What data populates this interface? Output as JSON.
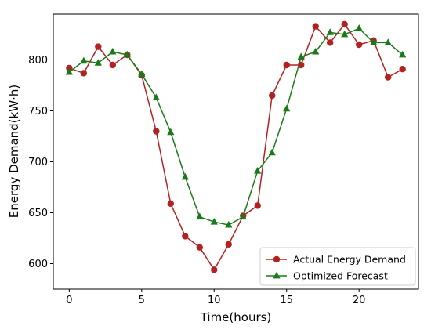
{
  "chart_data": {
    "type": "line",
    "title": "",
    "xlabel": "Time(hours)",
    "ylabel": "Energy Demand(kW·h)",
    "xlim": [
      -1.1,
      24.1
    ],
    "ylim": [
      575,
      845
    ],
    "xticks": [
      0,
      5,
      10,
      15,
      20
    ],
    "yticks": [
      600,
      650,
      700,
      750,
      800
    ],
    "grid": false,
    "legend_position": "lower-right",
    "x": [
      0,
      1,
      2,
      3,
      4,
      5,
      6,
      7,
      8,
      9,
      10,
      11,
      12,
      13,
      14,
      15,
      16,
      17,
      18,
      19,
      20,
      21,
      22,
      23
    ],
    "series": [
      {
        "name": "Actual Energy Demand",
        "color": "#b22222",
        "marker": "circle",
        "values": [
          792,
          787,
          813,
          795,
          805,
          785,
          730,
          659,
          627,
          616,
          594,
          619,
          647,
          657,
          765,
          795,
          795,
          833,
          817,
          835,
          815,
          819,
          783,
          791
        ]
      },
      {
        "name": "Optimized Forecast",
        "color": "#1a7a1a",
        "marker": "triangle",
        "values": [
          788,
          799,
          797,
          808,
          805,
          786,
          763,
          729,
          685,
          646,
          641,
          638,
          646,
          691,
          709,
          752,
          803,
          808,
          827,
          825,
          831,
          817,
          817,
          805
        ]
      }
    ]
  }
}
